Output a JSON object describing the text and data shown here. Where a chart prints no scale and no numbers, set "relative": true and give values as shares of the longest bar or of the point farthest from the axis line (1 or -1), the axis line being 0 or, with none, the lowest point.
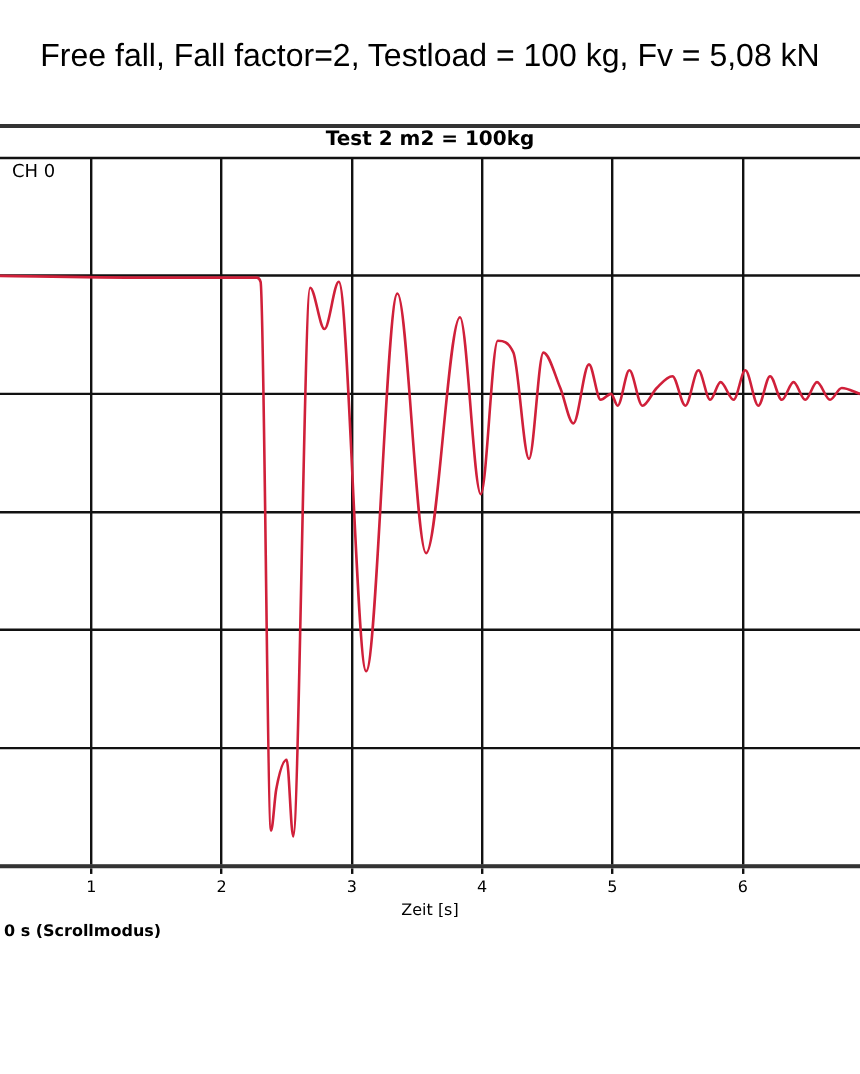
{
  "chart_data": {
    "type": "line",
    "title": "Free fall, Fall factor=2,  Testload = 100 kg, Fv = 5,08 kN",
    "subtitle": "Test 2 m2 = 100kg",
    "xlabel": "Zeit [s]",
    "relative": true,
    "xlim": [
      0.3,
      6.9
    ],
    "xticks": [
      1,
      2,
      3,
      4,
      5,
      6
    ],
    "grid": true,
    "legend": false,
    "marker": "none",
    "line_style": "solid",
    "annotations": [
      "CH 0",
      "0 s (Scrollmodus)"
    ],
    "series": [
      {
        "color": "#d0203a",
        "x": [
          0.3,
          1.5,
          2.27,
          2.3,
          2.38,
          2.42,
          2.5,
          2.55,
          2.68,
          2.79,
          2.9,
          3.11,
          3.35,
          3.57,
          3.83,
          3.99,
          4.12,
          4.24,
          4.36,
          4.47,
          4.6,
          4.7,
          4.82,
          4.91,
          4.99,
          5.04,
          5.13,
          5.23,
          5.34,
          5.46,
          5.56,
          5.66,
          5.75,
          5.83,
          5.93,
          6.02,
          6.12,
          6.21,
          6.3,
          6.39,
          6.48,
          6.57,
          6.67,
          6.76,
          6.9
        ],
        "values": [
          1.0,
          0.997,
          0.997,
          0.99,
          0.06,
          0.13,
          0.18,
          0.05,
          0.98,
          0.91,
          0.99,
          0.33,
          0.97,
          0.53,
          0.93,
          0.63,
          0.89,
          0.87,
          0.69,
          0.87,
          0.81,
          0.75,
          0.85,
          0.79,
          0.8,
          0.78,
          0.84,
          0.78,
          0.81,
          0.83,
          0.78,
          0.84,
          0.79,
          0.82,
          0.79,
          0.84,
          0.78,
          0.83,
          0.79,
          0.82,
          0.79,
          0.82,
          0.79,
          0.81,
          0.8
        ]
      }
    ]
  }
}
